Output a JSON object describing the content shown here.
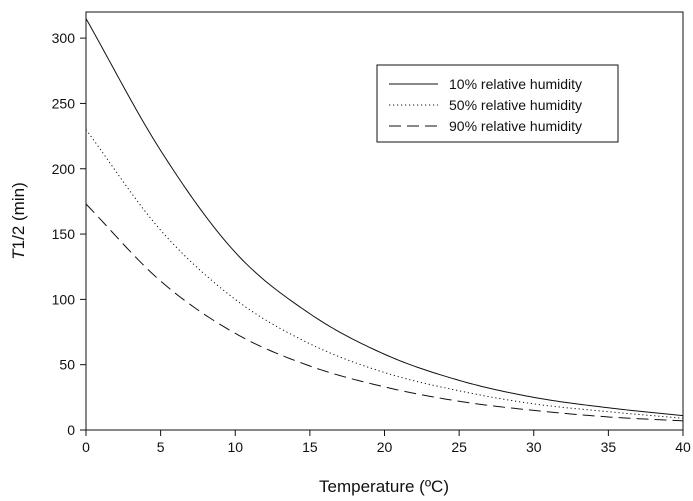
{
  "chart_data": {
    "type": "line",
    "xlabel": "Temperature (ºC)",
    "ylabel_italic": "T",
    "ylabel_rest": "1/2 (min)",
    "xlim": [
      0,
      40
    ],
    "ylim": [
      0,
      320
    ],
    "xticks": [
      "0",
      "5",
      "10",
      "15",
      "20",
      "25",
      "30",
      "35",
      "40"
    ],
    "yticks": [
      "0",
      "50",
      "100",
      "150",
      "200",
      "250",
      "300"
    ],
    "legend_position": "top-right",
    "grid": false,
    "x": [
      0,
      5,
      10,
      15,
      20,
      25,
      30,
      35,
      40
    ],
    "series": [
      {
        "name": "10% relative humidity",
        "style": "solid",
        "values": [
          315,
          214,
          136,
          89,
          58,
          38,
          25,
          17,
          11
        ]
      },
      {
        "name": "50% relative humidity",
        "style": "dotted",
        "values": [
          230,
          153,
          100,
          66,
          44,
          30,
          20,
          14,
          9
        ]
      },
      {
        "name": "90% relative humidity",
        "style": "dashed",
        "values": [
          173,
          114,
          74,
          49,
          33,
          22,
          15,
          10,
          7
        ]
      }
    ]
  }
}
